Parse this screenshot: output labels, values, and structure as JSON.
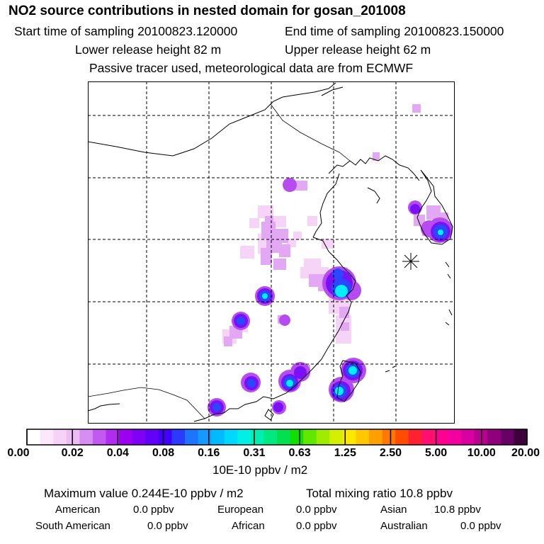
{
  "header": {
    "title": "NO2 source contributions in nested domain for gosan_201008",
    "start_label": "Start time of sampling 20100823.120000",
    "end_label": "End time of sampling 20100823.150000",
    "lower_release": "Lower release height   82 m",
    "upper_release": "Upper release height   62 m",
    "tracer_note": "Passive tracer used, meteorological data are from ECMWF"
  },
  "colorbar": {
    "ticks": [
      "0.00",
      "0.02",
      "0.04",
      "0.08",
      "0.16",
      "0.31",
      "0.63",
      "1.25",
      "2.50",
      "5.00",
      "10.00",
      "20.00"
    ],
    "colors": [
      "#ffffff",
      "#fbe8fb",
      "#f6d2f8",
      "#eebcf5",
      "#d78ef2",
      "#c25af0",
      "#b02cee",
      "#9c00f0",
      "#7f00f4",
      "#6200f8",
      "#4200fc",
      "#2a3aff",
      "#1e74ff",
      "#1499ff",
      "#00bbff",
      "#00d8ff",
      "#00f0e8",
      "#00eeb0",
      "#00e880",
      "#00e050",
      "#10e000",
      "#60e800",
      "#a0ec00",
      "#d4f000",
      "#ffe800",
      "#ffc800",
      "#ffa000",
      "#ff7800",
      "#ff4c00",
      "#ff2030",
      "#ff1070",
      "#ff0090",
      "#f400a0",
      "#d800a0",
      "#b8008f",
      "#90007c",
      "#680066",
      "#40003c"
    ],
    "units": "10E-10 ppbv / m2"
  },
  "summary": {
    "max_value": "Maximum value  0.244E-10 ppbv / m2",
    "total_mixing": "Total mixing ratio       10.8 ppbv"
  },
  "regions": [
    {
      "name": "American",
      "value": "0.0 ppbv"
    },
    {
      "name": "European",
      "value": "0.0 ppbv"
    },
    {
      "name": "Asian",
      "value": "10.8 ppbv"
    },
    {
      "name": "South American",
      "value": "0.0 ppbv"
    },
    {
      "name": "African",
      "value": "0.0 ppbv"
    },
    {
      "name": "Australian",
      "value": "0.0 ppbv"
    }
  ],
  "colors": {
    "light_pink": "#f3c8f6",
    "pink": "#e3a4f2",
    "violet": "#b040f0",
    "purple": "#8a10f6",
    "blue": "#2a40ff",
    "cyan": "#00f0ff",
    "navy": "#000070"
  }
}
